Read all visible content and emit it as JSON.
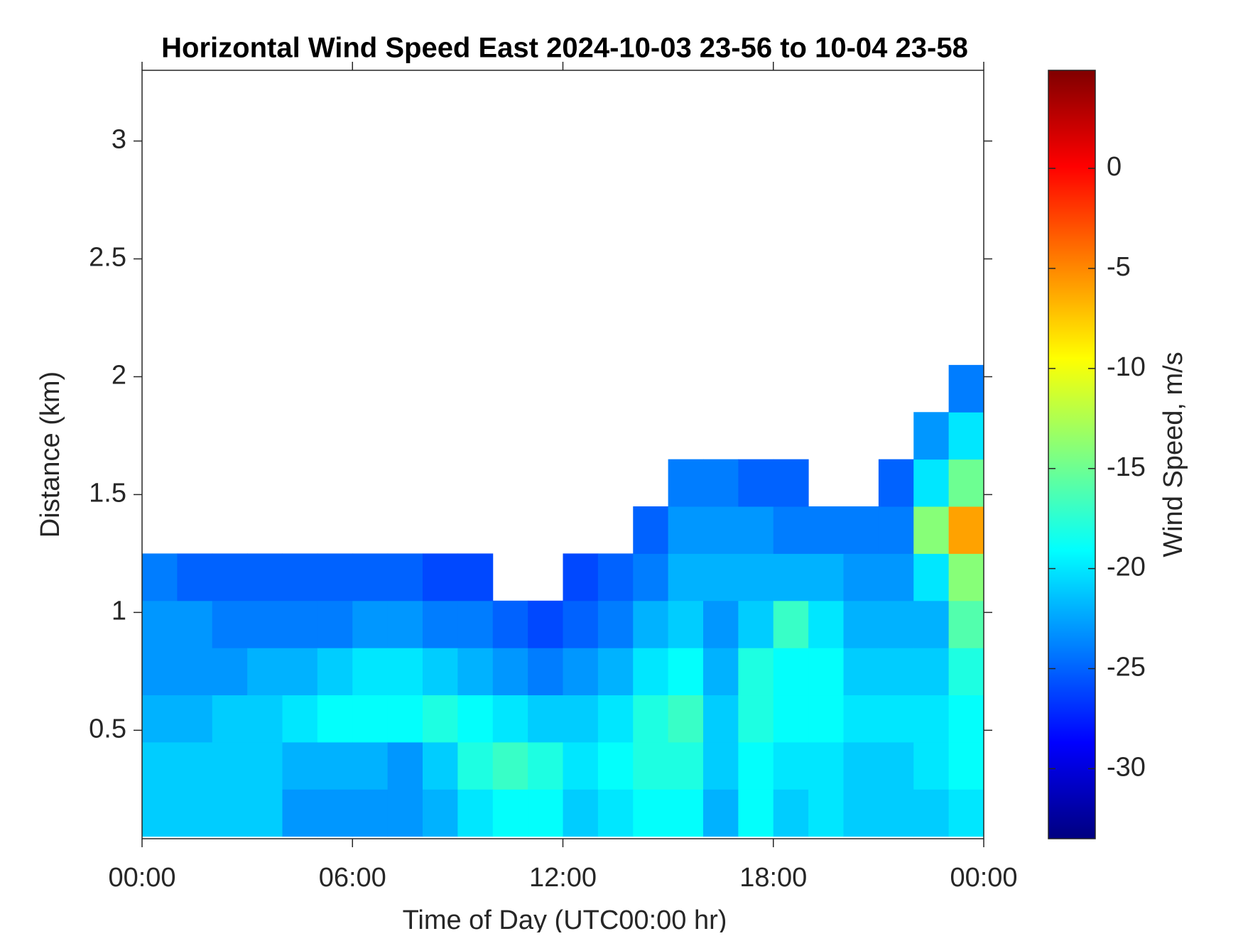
{
  "chart_data": {
    "type": "heatmap",
    "title": "Horizontal Wind Speed East 2024-10-03 23-56 to 10-04 23-58",
    "x_label": "Time of Day (UTC00:00 hr)",
    "y_label": "Distance (km)",
    "colorbar_label": "Wind Speed, m/s",
    "colormap": "jet",
    "xlim": [
      0,
      24
    ],
    "xticks": [
      {
        "value": 0,
        "label": "00:00"
      },
      {
        "value": 6,
        "label": "06:00"
      },
      {
        "value": 12,
        "label": "12:00"
      },
      {
        "value": 18,
        "label": "18:00"
      },
      {
        "value": 24,
        "label": "00:00"
      }
    ],
    "ylim": [
      0.04,
      3.3
    ],
    "yticks": [
      0.5,
      1,
      1.5,
      2,
      2.5,
      3
    ],
    "clim": [
      -33.5,
      4.9
    ],
    "cticks": [
      -30,
      -25,
      -20,
      -15,
      -10,
      -5,
      0
    ],
    "x_bins": [
      0,
      1,
      2,
      3,
      4,
      5,
      6,
      7,
      8,
      9,
      10,
      11,
      12,
      13,
      14,
      15,
      16,
      17,
      18,
      19,
      20,
      21,
      22,
      23,
      24
    ],
    "y_bins": [
      0.05,
      0.25,
      0.45,
      0.65,
      0.85,
      1.05,
      1.25,
      1.45,
      1.65,
      1.85,
      2.05,
      2.25
    ],
    "values": [
      [
        -21,
        -21,
        -22,
        -23,
        -23,
        -24,
        null,
        null,
        null,
        null,
        null
      ],
      [
        -21,
        -21,
        -22,
        -23,
        -23,
        -25,
        null,
        null,
        null,
        null,
        null
      ],
      [
        -21,
        -21,
        -21,
        -23,
        -24,
        -25,
        null,
        null,
        null,
        null,
        null
      ],
      [
        -21,
        -21,
        -21,
        -22,
        -24,
        -25,
        null,
        null,
        null,
        null,
        null
      ],
      [
        -23,
        -22,
        -20,
        -22,
        -24,
        -25,
        null,
        null,
        null,
        null,
        null
      ],
      [
        -23,
        -22,
        -19,
        -21,
        -24,
        -25,
        null,
        null,
        null,
        null,
        null
      ],
      [
        -23,
        -22,
        -19,
        -20,
        -23,
        -25,
        null,
        null,
        null,
        null,
        null
      ],
      [
        -23,
        -23,
        -19,
        -20,
        -23,
        -25,
        null,
        null,
        null,
        null,
        null
      ],
      [
        -22,
        -21,
        -18,
        -21,
        -24,
        -26,
        null,
        null,
        null,
        null,
        null
      ],
      [
        -20,
        -18,
        -19,
        -22,
        -24,
        -26,
        null,
        null,
        null,
        null,
        null
      ],
      [
        -19,
        -17,
        -20,
        -23,
        -25,
        null,
        null,
        null,
        null,
        null,
        null
      ],
      [
        -19,
        -18,
        -21,
        -24,
        -26,
        null,
        null,
        null,
        null,
        null,
        null
      ],
      [
        -21,
        -20,
        -21,
        -23,
        -25,
        -26,
        null,
        null,
        null,
        null,
        null
      ],
      [
        -20,
        -19,
        -20,
        -22,
        -24,
        -25,
        null,
        null,
        null,
        null,
        null
      ],
      [
        -19,
        -18,
        -18,
        -20,
        -22,
        -24,
        -25,
        null,
        null,
        null,
        null
      ],
      [
        -19,
        -18,
        -17,
        -19,
        -21,
        -22,
        -23,
        -24,
        null,
        null,
        null
      ],
      [
        -22,
        -21,
        -21,
        -22,
        -23,
        -22,
        -23,
        -24,
        null,
        null,
        null
      ],
      [
        -19,
        -19,
        -18,
        -18,
        -21,
        -22,
        -23,
        -25,
        null,
        null,
        null
      ],
      [
        -21,
        -20,
        -19,
        -19,
        -17,
        -22,
        -24,
        -25,
        null,
        null,
        null
      ],
      [
        -20,
        -20,
        -19,
        -19,
        -20,
        -22,
        -24,
        null,
        null,
        null,
        null
      ],
      [
        -21,
        -21,
        -20,
        -21,
        -22,
        -23,
        -24,
        null,
        null,
        null,
        null
      ],
      [
        -21,
        -21,
        -20,
        -21,
        -22,
        -23,
        -24,
        -25,
        null,
        null,
        null
      ],
      [
        -21,
        -20,
        -20,
        -21,
        -22,
        -20,
        -14,
        -20,
        -23,
        null,
        null
      ],
      [
        -20,
        -19,
        -19,
        -18,
        -16,
        -14,
        -6,
        -15,
        -20,
        -24,
        null
      ]
    ]
  }
}
